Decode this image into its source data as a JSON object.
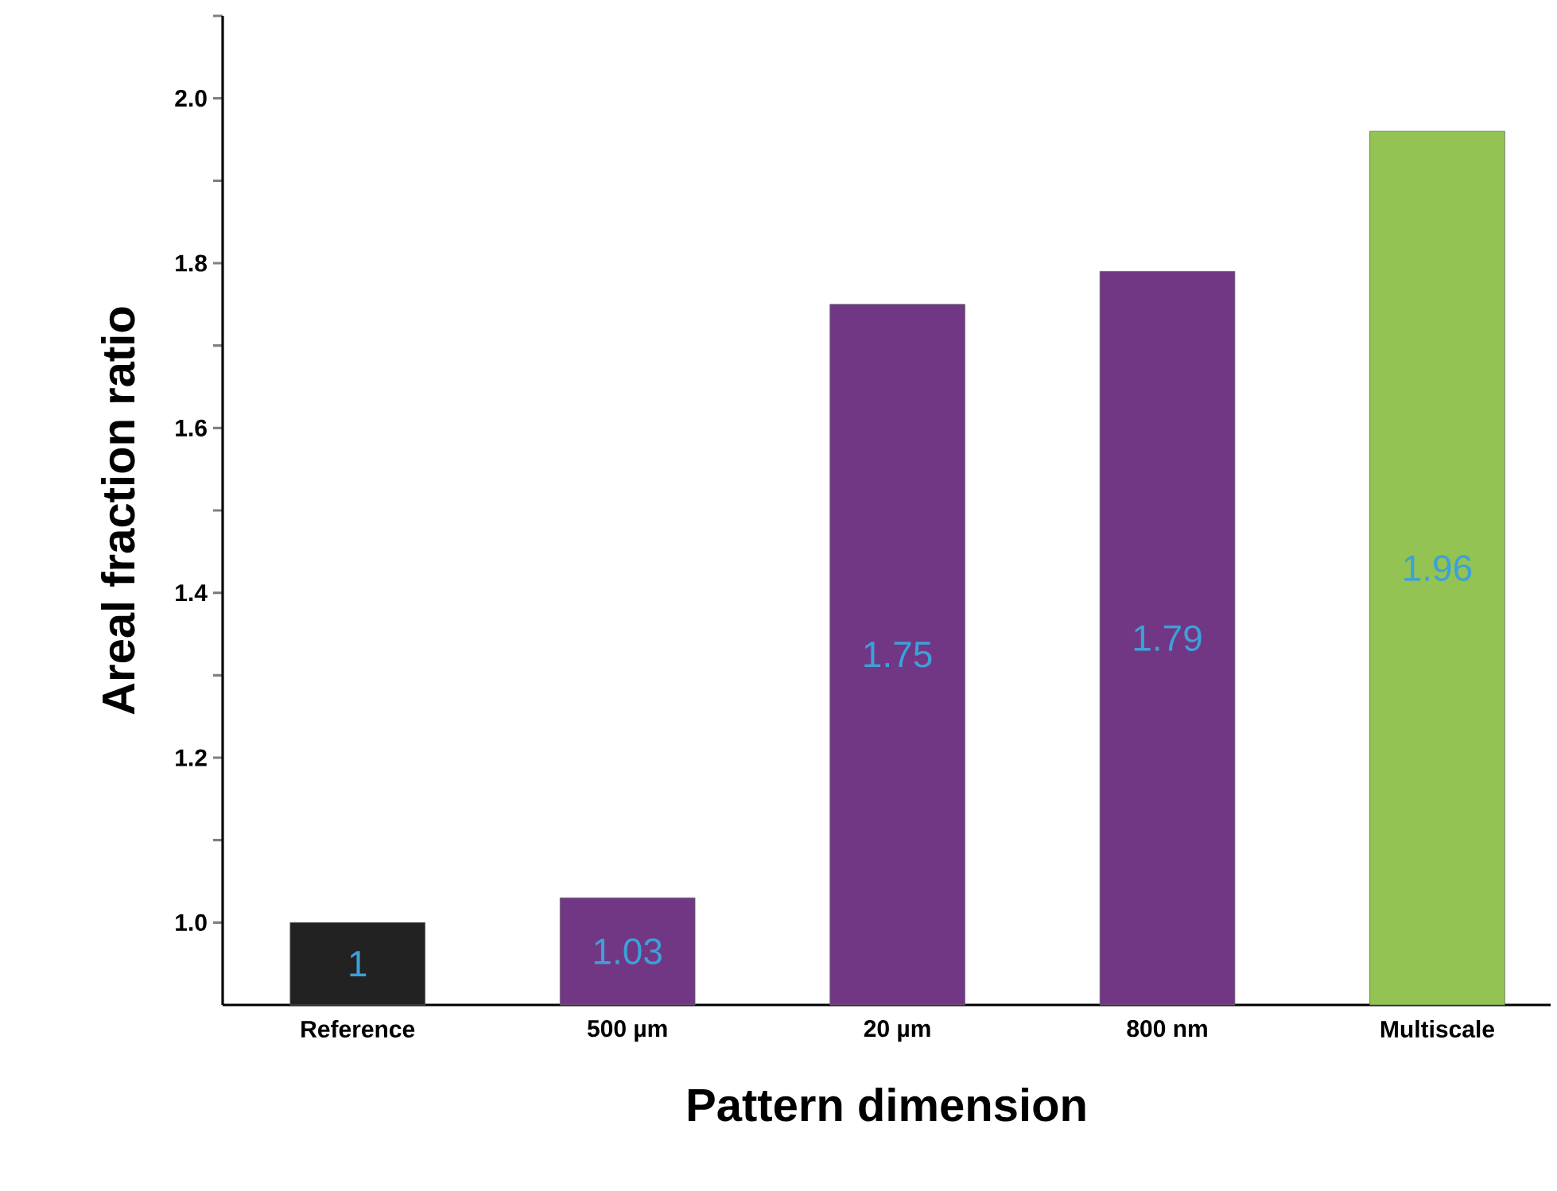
{
  "chart_data": {
    "type": "bar",
    "xlabel": "Pattern dimension",
    "ylabel": "Areal fraction ratio",
    "categories": [
      "Reference",
      "500 µm",
      "20 µm",
      "800 nm",
      "Multiscale"
    ],
    "values": [
      1,
      1.03,
      1.75,
      1.79,
      1.96
    ],
    "colors": [
      "#222222",
      "#713784",
      "#713784",
      "#713784",
      "#92c353"
    ],
    "value_labels": [
      "1",
      "1.03",
      "1.75",
      "1.79",
      "1.96"
    ],
    "ylim": [
      0.9,
      2.1
    ],
    "yticks": [
      {
        "value": 1.0,
        "label": "1.0"
      },
      {
        "value": 1.1,
        "label": null
      },
      {
        "value": 1.2,
        "label": "1.2"
      },
      {
        "value": 1.3,
        "label": null
      },
      {
        "value": 1.4,
        "label": "1.4"
      },
      {
        "value": 1.5,
        "label": null
      },
      {
        "value": 1.6,
        "label": "1.6"
      },
      {
        "value": 1.7,
        "label": null
      },
      {
        "value": 1.8,
        "label": "1.8"
      },
      {
        "value": 1.9,
        "label": null
      },
      {
        "value": 2.0,
        "label": "2.0"
      },
      {
        "value": 2.1,
        "label": null
      }
    ],
    "grid": false
  }
}
